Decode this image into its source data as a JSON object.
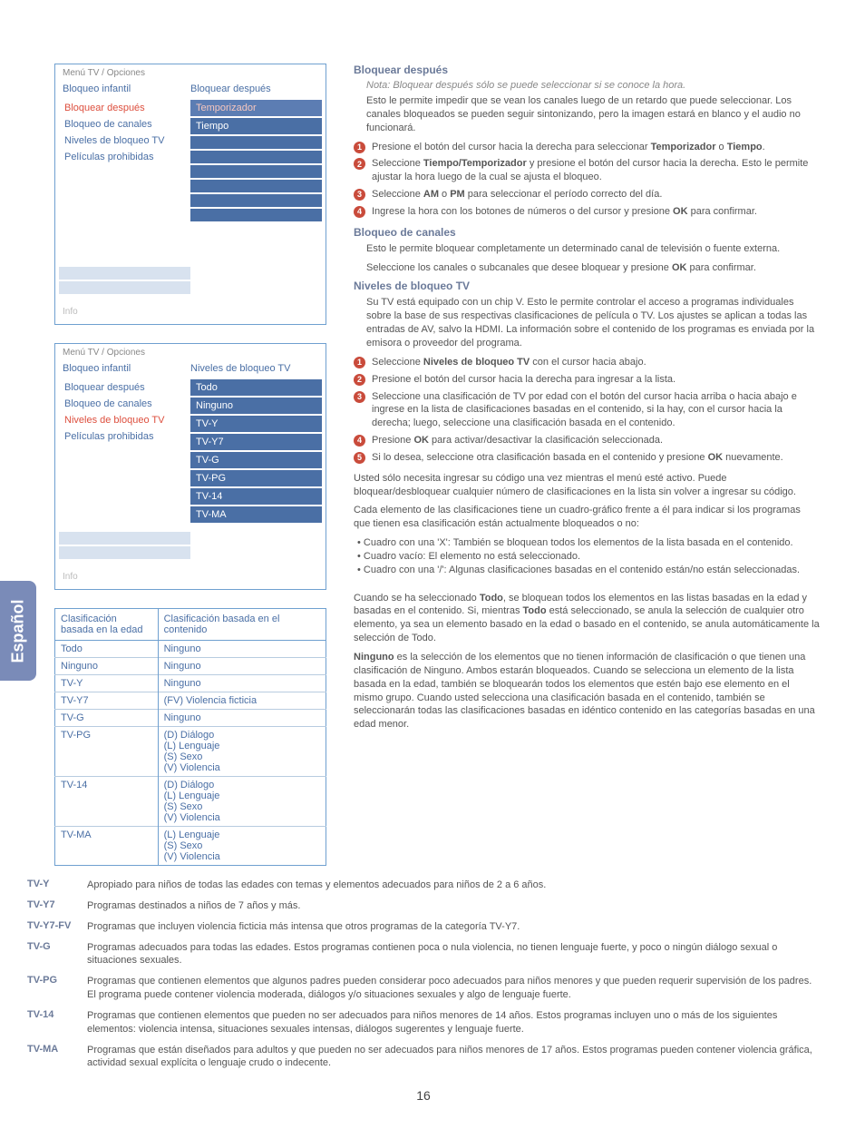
{
  "lang_tab": "Español",
  "page_number": "16",
  "menu1": {
    "header": "Menú TV / Opciones",
    "title_left": "Bloqueo infantil",
    "title_right": "Bloquear después",
    "left_items": [
      "Bloquear después",
      "Bloqueo de canales",
      "Niveles de bloqueo TV",
      "Películas prohibidas"
    ],
    "left_selected": 0,
    "right_items": [
      "Temporizador",
      "Tiempo"
    ],
    "right_selected": 0,
    "footer": "Info"
  },
  "menu2": {
    "header": "Menú TV / Opciones",
    "title_left": "Bloqueo infantil",
    "title_right": "Niveles de bloqueo TV",
    "left_items": [
      "Bloquear después",
      "Bloqueo de canales",
      "Niveles de bloqueo TV",
      "Películas prohibidas"
    ],
    "left_selected": 2,
    "right_items": [
      "Todo",
      "Ninguno",
      "TV-Y",
      "TV-Y7",
      "TV-G",
      "TV-PG",
      "TV-14",
      "TV-MA"
    ],
    "footer": "Info"
  },
  "class_table": {
    "head_left": "Clasificación basada en la edad",
    "head_right": "Clasificación basada en el contenido",
    "rows": [
      {
        "l": "Todo",
        "r": [
          "Ninguno"
        ]
      },
      {
        "l": "Ninguno",
        "r": [
          "Ninguno"
        ]
      },
      {
        "l": "TV-Y",
        "r": [
          "Ninguno"
        ]
      },
      {
        "l": "TV-Y7",
        "r": [
          "(FV) Violencia ficticia"
        ]
      },
      {
        "l": "TV-G",
        "r": [
          "Ninguno"
        ]
      },
      {
        "l": "TV-PG",
        "r": [
          "(D) Diálogo",
          "(L) Lenguaje",
          "(S) Sexo",
          "(V) Violencia"
        ]
      },
      {
        "l": "TV-14",
        "r": [
          "(D) Diálogo",
          "(L) Lenguaje",
          "(S) Sexo",
          "(V) Violencia"
        ]
      },
      {
        "l": "TV-MA",
        "r": [
          "(L) Lenguaje",
          "(S) Sexo",
          "(V) Violencia"
        ]
      }
    ]
  },
  "sections": {
    "bloquear_despues": {
      "title": "Bloquear después",
      "note": "Nota: Bloquear después sólo se puede seleccionar si se conoce la hora.",
      "intro": "Esto le permite impedir que se vean los canales luego de un retardo que puede seleccionar. Los canales bloqueados se pueden seguir sintonizando, pero la imagen estará en blanco y el audio no funcionará.",
      "steps": [
        "Presione el botón del cursor hacia la derecha para seleccionar <b>Temporizador</b> o <b>Tiempo</b>.",
        "Seleccione <b>Tiempo/Temporizador</b> y presione el botón del cursor hacia la derecha. Esto le permite ajustar la hora luego de la cual se ajusta el bloqueo.",
        "Seleccione <b>AM</b> o <b>PM</b> para seleccionar el período correcto del día.",
        "Ingrese la hora con los botones de números o del cursor y presione <b>OK</b> para confirmar."
      ]
    },
    "bloqueo_canales": {
      "title": "Bloqueo de canales",
      "p1": "Esto le permite bloquear completamente un determinado canal de televisión o fuente externa.",
      "p2": "Seleccione los canales o subcanales que desee bloquear y presione <b>OK</b> para confirmar."
    },
    "niveles": {
      "title": "Niveles de bloqueo TV",
      "intro": "Su TV está equipado con un chip V. Esto le permite controlar el acceso a programas individuales sobre la base de sus respectivas clasificaciones de película o TV. Los ajustes se aplican a todas las entradas de AV, salvo la HDMI. La información sobre el contenido de los programas es enviada por la emisora o proveedor del programa.",
      "steps": [
        "Seleccione <b>Niveles de bloqueo TV</b> con el cursor hacia abajo.",
        "Presione el botón del cursor hacia la derecha para ingresar a la lista.",
        "Seleccione una clasificación de TV por edad con el botón del cursor hacia arriba o hacia abajo e ingrese en la lista de clasificaciones basadas en el contenido, si la hay, con el cursor hacia la derecha; luego, seleccione una clasificación basada en el contenido.",
        "Presione <b>OK</b> para activar/desactivar la clasificación seleccionada.",
        "Si lo desea, seleccione otra clasificación basada en el contenido y presione <b>OK</b> nuevamente."
      ],
      "p_after1": "Usted sólo necesita ingresar su código una vez mientras el menú esté activo. Puede bloquear/desbloquear cualquier número de clasificaciones en la lista sin volver a ingresar su código.",
      "p_after2": "Cada elemento de las clasificaciones tiene un cuadro-gráfico frente a él para indicar si los programas que tienen esa clasificación están actualmente bloqueados o no:",
      "bullets": [
        "• Cuadro con una 'X': También se bloquean todos los elementos de la lista basada en el contenido.",
        "• Cuadro vacío: El elemento no está seleccionado.",
        "• Cuadro con una '/': Algunas clasificaciones basadas en el contenido están/no están seleccionadas."
      ],
      "p_todo": "Cuando se ha seleccionado <b>Todo</b>, se bloquean todos los elementos en las listas basadas en la edad y basadas en el contenido. Si, mientras <b>Todo</b> está seleccionado, se anula la selección de cualquier otro elemento, ya sea un elemento basado en la edad o basado en el contenido, se anula automáticamente la selección de Todo.",
      "p_ninguno": "<b>Ninguno</b> es la selección de los elementos que no tienen información de clasificación o que tienen una clasificación de Ninguno. Ambos estarán bloqueados. Cuando se selecciona un elemento de la lista basada en la edad, también se bloquearán todos los elementos que estén bajo ese elemento en el mismo grupo. Cuando usted selecciona una clasificación basada en el contenido, también se seleccionarán todas las clasificaciones basadas en idéntico contenido en las categorías basadas en una edad menor."
    }
  },
  "defs": [
    {
      "label": "TV-Y",
      "text": "Apropiado para niños de todas las edades con temas y elementos adecuados para niños de 2 a 6 años."
    },
    {
      "label": "TV-Y7",
      "text": "Programas destinados a niños de 7 años y más."
    },
    {
      "label": "TV-Y7-FV",
      "text": "Programas que incluyen violencia ficticia más intensa que otros programas de la categoría TV-Y7."
    },
    {
      "label": "TV-G",
      "text": "Programas adecuados para todas las edades. Estos programas contienen poca o nula violencia, no tienen lenguaje fuerte, y poco o ningún diálogo sexual o situaciones sexuales."
    },
    {
      "label": "TV-PG",
      "text": "Programas que contienen elementos que algunos padres pueden considerar poco adecuados para niños menores y que pueden requerir supervisión de los padres. El programa puede contener violencia moderada, diálogos y/o situaciones sexuales y algo de lenguaje fuerte."
    },
    {
      "label": "TV-14",
      "text": "Programas que contienen elementos que pueden no ser adecuados para niños menores de 14 años. Estos programas incluyen uno o más de los siguientes elementos: violencia intensa, situaciones sexuales intensas, diálogos sugerentes y lenguaje fuerte."
    },
    {
      "label": "TV-MA",
      "text": "Programas que están diseñados para adultos y que pueden no ser adecuados para niños menores de 17 años. Estos programas pueden contener violencia gráfica, actividad sexual explícita o lenguaje crudo o indecente."
    }
  ]
}
